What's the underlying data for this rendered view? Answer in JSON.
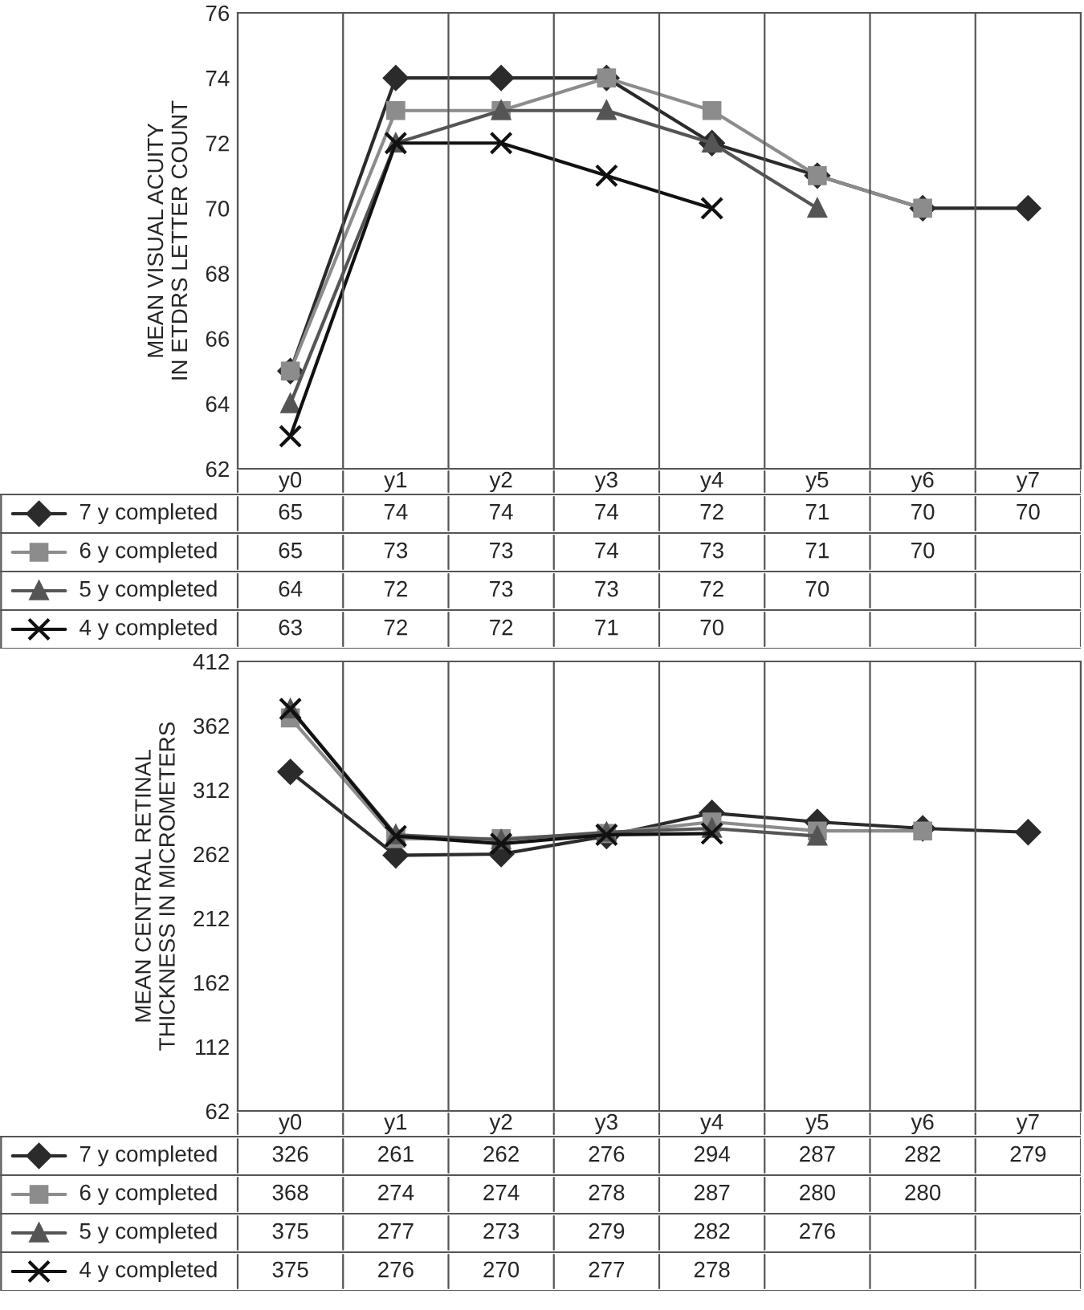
{
  "chart_data": [
    {
      "type": "line",
      "ylabel": "MEAN VISUAL ACUITY\nIN ETDRS LETTER COUNT",
      "categories": [
        "y0",
        "y1",
        "y2",
        "y3",
        "y4",
        "y5",
        "y6",
        "y7"
      ],
      "ylim": [
        62,
        76
      ],
      "yticks": [
        62,
        64,
        66,
        68,
        70,
        72,
        74,
        76
      ],
      "grid": "x",
      "legend": "bottom",
      "data_labels": true,
      "series": [
        {
          "name": "7 y completed",
          "color": "#2b2b2b",
          "marker": "diamond",
          "values": [
            65,
            74,
            74,
            74,
            72,
            71,
            70,
            70
          ]
        },
        {
          "name": "6 y completed",
          "color": "#8c8c8c",
          "marker": "square",
          "values": [
            65,
            73,
            73,
            74,
            73,
            71,
            70,
            null
          ]
        },
        {
          "name": "5 y completed",
          "color": "#555555",
          "marker": "triangle",
          "values": [
            64,
            72,
            73,
            73,
            72,
            70,
            null,
            null
          ]
        },
        {
          "name": "4 y completed",
          "color": "#111111",
          "marker": "cross",
          "values": [
            63,
            72,
            72,
            71,
            70,
            null,
            null,
            null
          ]
        }
      ]
    },
    {
      "type": "line",
      "ylabel": "MEAN CENTRAL RETINAL\nTHICKNESS IN MICROMETERS",
      "categories": [
        "y0",
        "y1",
        "y2",
        "y3",
        "y4",
        "y5",
        "y6",
        "y7"
      ],
      "ylim": [
        62,
        412
      ],
      "yticks": [
        62,
        112,
        162,
        212,
        262,
        312,
        362,
        412
      ],
      "grid": "x",
      "legend": "bottom",
      "data_labels": true,
      "series": [
        {
          "name": "7 y completed",
          "color": "#2b2b2b",
          "marker": "diamond",
          "values": [
            326,
            261,
            262,
            276,
            294,
            287,
            282,
            279
          ]
        },
        {
          "name": "6 y completed",
          "color": "#8c8c8c",
          "marker": "square",
          "values": [
            368,
            274,
            274,
            278,
            287,
            280,
            280,
            null
          ]
        },
        {
          "name": "5 y completed",
          "color": "#555555",
          "marker": "triangle",
          "values": [
            375,
            277,
            273,
            279,
            282,
            276,
            null,
            null
          ]
        },
        {
          "name": "4 y completed",
          "color": "#111111",
          "marker": "cross",
          "values": [
            375,
            276,
            270,
            277,
            278,
            null,
            null,
            null
          ]
        }
      ]
    }
  ]
}
